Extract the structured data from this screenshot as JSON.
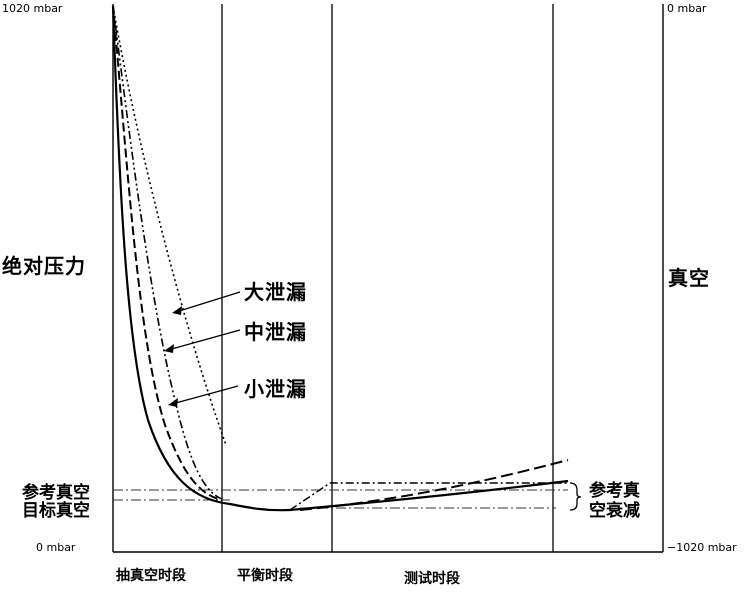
{
  "axes": {
    "left_top": "1020 mbar",
    "left_bottom": "0 mbar",
    "right_top": "0 mbar",
    "right_bottom": "−1020 mbar",
    "left_title": "绝对压力",
    "right_title": "真空"
  },
  "leaks": {
    "large": "大泄漏",
    "medium": "中泄漏",
    "small": "小泄漏"
  },
  "reference": {
    "reference_vacuum": "参考真空",
    "target_vacuum": "目标真空",
    "decay_line1": "参考真",
    "decay_line2": "空衰减"
  },
  "phases": {
    "evacuation": "抽真空时段",
    "balance": "平衡时段",
    "test": "测试时段"
  }
}
